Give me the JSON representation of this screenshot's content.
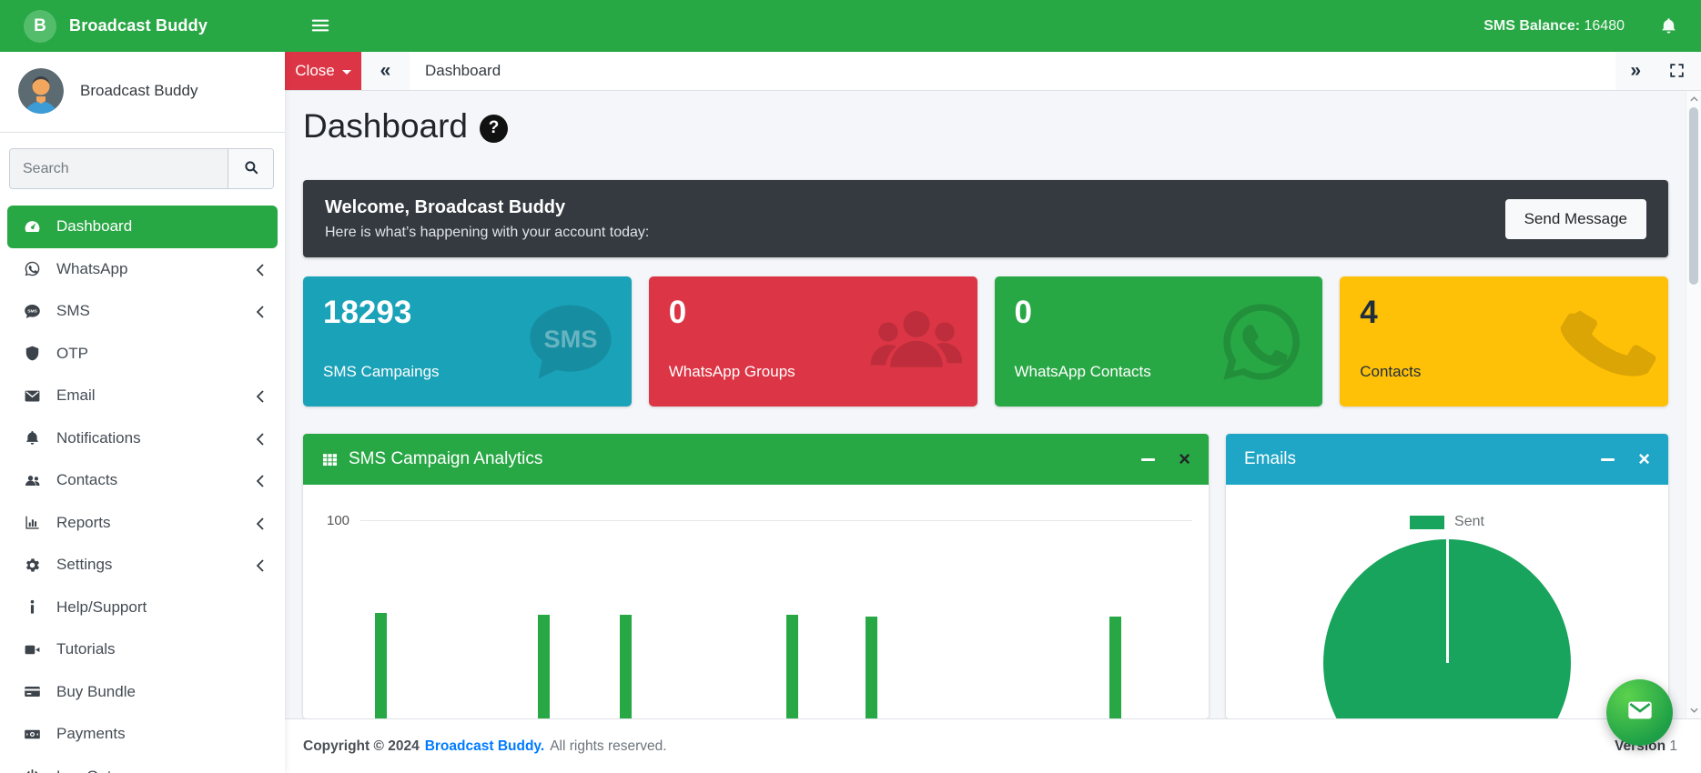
{
  "brand": {
    "name": "Broadcast Buddy",
    "logo_letter": "B"
  },
  "header": {
    "sms_balance_label": "SMS Balance:",
    "sms_balance_value": "16480",
    "bell_icon": "bell-icon",
    "hamburger_icon": "hamburger-icon"
  },
  "sidebar": {
    "user_name": "Broadcast Buddy",
    "search_placeholder": "Search",
    "items": [
      {
        "label": "Dashboard",
        "icon": "tachometer",
        "active": true,
        "chevron": false
      },
      {
        "label": "WhatsApp",
        "icon": "whatsapp",
        "active": false,
        "chevron": true
      },
      {
        "label": "SMS",
        "icon": "sms",
        "active": false,
        "chevron": true
      },
      {
        "label": "OTP",
        "icon": "shield",
        "active": false,
        "chevron": false
      },
      {
        "label": "Email",
        "icon": "envelope",
        "active": false,
        "chevron": true
      },
      {
        "label": "Notifications",
        "icon": "bell",
        "active": false,
        "chevron": true
      },
      {
        "label": "Contacts",
        "icon": "users",
        "active": false,
        "chevron": true
      },
      {
        "label": "Reports",
        "icon": "chart-bar",
        "active": false,
        "chevron": true
      },
      {
        "label": "Settings",
        "icon": "gear",
        "active": false,
        "chevron": true
      },
      {
        "label": "Help/Support",
        "icon": "info",
        "active": false,
        "chevron": false
      },
      {
        "label": "Tutorials",
        "icon": "video",
        "active": false,
        "chevron": false
      },
      {
        "label": "Buy Bundle",
        "icon": "credit-card",
        "active": false,
        "chevron": false
      },
      {
        "label": "Payments",
        "icon": "money",
        "active": false,
        "chevron": false
      },
      {
        "label": "Log Out",
        "icon": "power",
        "active": false,
        "chevron": false
      }
    ]
  },
  "toolbar": {
    "close_label": "Close",
    "collapse_glyph": "«",
    "forward_glyph": "»",
    "tab_label": "Dashboard"
  },
  "page": {
    "title": "Dashboard",
    "help_glyph": "?"
  },
  "welcome": {
    "title": "Welcome, Broadcast Buddy",
    "subtitle": "Here is what’s happening with your account today:",
    "button_label": "Send Message"
  },
  "stats": [
    {
      "value": "18293",
      "label": "SMS Campaings",
      "color": "#1aa2b8",
      "icon": "sms-bubble",
      "dark_text": false
    },
    {
      "value": "0",
      "label": "WhatsApp Groups",
      "color": "#dc3545",
      "icon": "user-group",
      "dark_text": false
    },
    {
      "value": "0",
      "label": "WhatsApp Contacts",
      "color": "#28a745",
      "icon": "whatsapp-outline",
      "dark_text": false
    },
    {
      "value": "4",
      "label": "Contacts",
      "color": "#ffc107",
      "icon": "phone",
      "dark_text": true
    }
  ],
  "panels": {
    "analytics": {
      "title": "SMS Campaign Analytics",
      "header_color": "#28a745",
      "minimize_glyph": "minus",
      "close_glyph": "×"
    },
    "emails": {
      "title": "Emails",
      "header_color": "#1fa6c7",
      "minimize_glyph": "minus",
      "close_glyph": "×"
    }
  },
  "chart_data": [
    {
      "type": "bar",
      "title": "SMS Campaign Analytics",
      "ylim": [
        0,
        100
      ],
      "visible_y_ticks": [
        "100"
      ],
      "grid": true,
      "bar_color": "#28a745",
      "note": "lower portion of chart clipped by viewport; x-axis labels not visible",
      "bars": [
        {
          "x_percent": 8.6,
          "value": 58
        },
        {
          "x_percent": 26.6,
          "value": 57
        },
        {
          "x_percent": 35.6,
          "value": 57
        },
        {
          "x_percent": 54.0,
          "value": 57
        },
        {
          "x_percent": 62.8,
          "value": 56
        },
        {
          "x_percent": 89.7,
          "value": 56
        }
      ]
    },
    {
      "type": "pie",
      "title": "Emails",
      "legend_position": "top",
      "slices": [
        {
          "label": "Sent",
          "value": 100,
          "color": "#18a45c"
        }
      ]
    }
  ],
  "footer": {
    "copyright_prefix": "Copyright © 2024",
    "brand_link": "Broadcast Buddy.",
    "rights_text": "All rights reserved.",
    "version_label": "Version",
    "version_value": "1"
  }
}
